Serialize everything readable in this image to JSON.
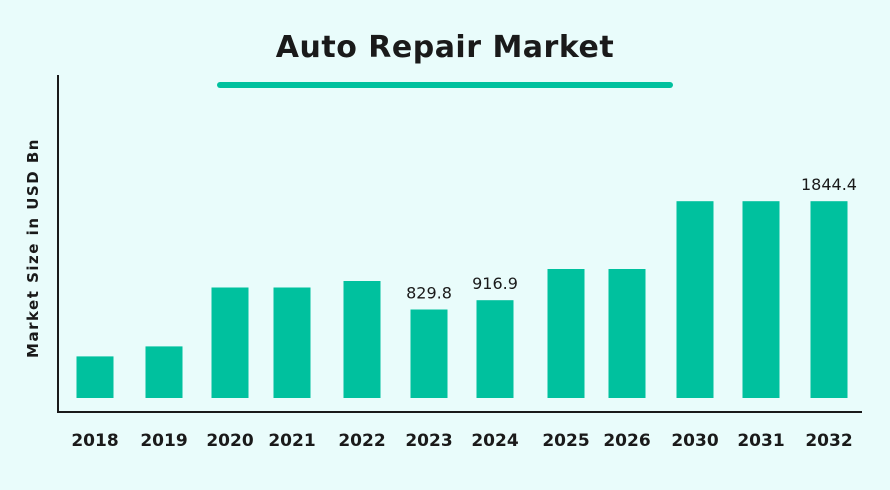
{
  "chart_data": {
    "type": "bar",
    "title": "Auto Repair Market",
    "xlabel": "",
    "ylabel": "Market Size in USD Bn",
    "categories": [
      "2018",
      "2019",
      "2020",
      "2021",
      "2022",
      "2023",
      "2024",
      "2025",
      "2026",
      "2030",
      "2031",
      "2032"
    ],
    "values": [
      390,
      484,
      1036,
      1036,
      1097,
      829.8,
      916.9,
      1209,
      1209,
      1844.4,
      1844.4,
      1844.4
    ],
    "data_labels": [
      "",
      "",
      "",
      "",
      "",
      "829.8",
      "916.9",
      "",
      "",
      "",
      "",
      "1844.4"
    ],
    "bar_color": "#00c19e",
    "grid": false,
    "legend": "none"
  }
}
